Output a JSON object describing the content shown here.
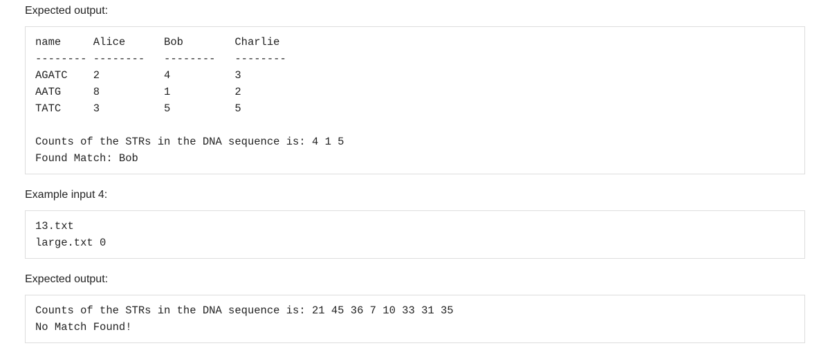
{
  "labels": {
    "expected_output_1": "Expected output:",
    "example_input_4": "Example input 4:",
    "expected_output_2": "Expected output:"
  },
  "block1": {
    "header_name": "name",
    "header_cols": [
      "Alice",
      "Bob",
      "Charlie"
    ],
    "separator": "--------",
    "rows": [
      {
        "key": "AGATC",
        "vals": [
          "2",
          "4",
          "3"
        ]
      },
      {
        "key": "AATG",
        "vals": [
          "8",
          "1",
          "2"
        ]
      },
      {
        "key": "TATC",
        "vals": [
          "3",
          "5",
          "5"
        ]
      }
    ],
    "counts_line": "Counts of the STRs in the DNA sequence is: 4 1 5",
    "match_line": "Found Match: Bob"
  },
  "block2": {
    "lines": [
      "13.txt",
      "large.txt 0"
    ]
  },
  "block3": {
    "counts_line": "Counts of the STRs in the DNA sequence is: 21 45 36 7 10 33 31 35",
    "match_line": "No Match Found!"
  },
  "layout": {
    "col_key_width": 9,
    "col_val_width": 11
  }
}
